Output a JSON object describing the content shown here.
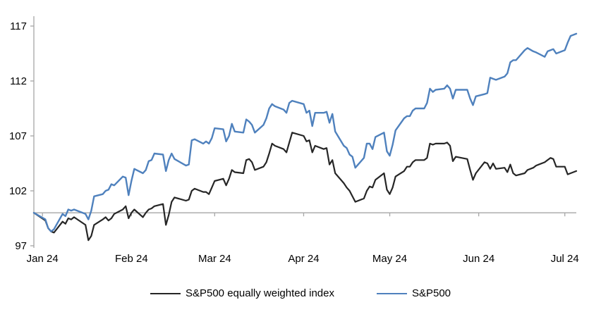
{
  "chart_data": {
    "type": "line",
    "title": "",
    "xlabel": "",
    "ylabel": "",
    "grid": "off",
    "legend_position": "bottom-center",
    "y_axis": {
      "min": 97,
      "max": 117,
      "ticks": [
        97,
        102,
        107,
        112,
        117
      ]
    },
    "x_axis": {
      "tick_labels": [
        "Jan 24",
        "Feb 24",
        "Mar 24",
        "Apr 24",
        "May 24",
        "Jun 24",
        "Jul 24"
      ],
      "tick_positions_days": [
        3,
        34,
        63,
        94,
        124,
        155,
        185
      ],
      "x_unit": "calendar days since index base (=100), daily closes Jan-early Jul 2024"
    },
    "baseline_value": 100,
    "series": [
      {
        "name": "S&P500 equally weighted index",
        "color": "#262626",
        "points": [
          [
            0,
            100
          ],
          [
            4,
            99.3
          ],
          [
            5,
            98.6
          ],
          [
            6,
            98.3
          ],
          [
            7,
            98.2
          ],
          [
            10,
            99.2
          ],
          [
            11,
            99.0
          ],
          [
            12,
            99.5
          ],
          [
            13,
            99.4
          ],
          [
            14,
            99.6
          ],
          [
            18,
            98.9
          ],
          [
            19,
            97.5
          ],
          [
            20,
            97.9
          ],
          [
            21,
            98.9
          ],
          [
            24,
            99.4
          ],
          [
            25,
            99.6
          ],
          [
            26,
            99.3
          ],
          [
            27,
            99.5
          ],
          [
            28,
            99.9
          ],
          [
            31,
            100.3
          ],
          [
            32,
            100.6
          ],
          [
            33,
            99.5
          ],
          [
            34,
            100.0
          ],
          [
            35,
            100.3
          ],
          [
            38,
            99.6
          ],
          [
            39,
            100.0
          ],
          [
            40,
            100.3
          ],
          [
            41,
            100.4
          ],
          [
            42,
            100.6
          ],
          [
            45,
            100.8
          ],
          [
            46,
            98.9
          ],
          [
            47,
            99.8
          ],
          [
            48,
            101.0
          ],
          [
            49,
            101.4
          ],
          [
            53,
            101.1
          ],
          [
            54,
            101.2
          ],
          [
            55,
            102.0
          ],
          [
            56,
            102.2
          ],
          [
            59,
            101.9
          ],
          [
            60,
            101.9
          ],
          [
            61,
            101.7
          ],
          [
            62,
            102.3
          ],
          [
            63,
            102.9
          ],
          [
            66,
            103.1
          ],
          [
            67,
            102.5
          ],
          [
            68,
            103.1
          ],
          [
            69,
            103.9
          ],
          [
            70,
            103.7
          ],
          [
            73,
            103.6
          ],
          [
            74,
            104.8
          ],
          [
            75,
            104.9
          ],
          [
            76,
            104.6
          ],
          [
            77,
            103.9
          ],
          [
            80,
            104.2
          ],
          [
            81,
            104.6
          ],
          [
            82,
            105.4
          ],
          [
            83,
            106.3
          ],
          [
            84,
            106.1
          ],
          [
            87,
            105.8
          ],
          [
            88,
            105.5
          ],
          [
            89,
            106.4
          ],
          [
            90,
            107.3
          ],
          [
            94,
            107.0
          ],
          [
            95,
            106.5
          ],
          [
            96,
            106.6
          ],
          [
            97,
            105.5
          ],
          [
            98,
            106.1
          ],
          [
            101,
            105.8
          ],
          [
            102,
            105.9
          ],
          [
            103,
            104.4
          ],
          [
            104,
            104.8
          ],
          [
            105,
            103.6
          ],
          [
            108,
            102.7
          ],
          [
            109,
            102.3
          ],
          [
            110,
            102.0
          ],
          [
            111,
            101.5
          ],
          [
            112,
            101.0
          ],
          [
            115,
            101.3
          ],
          [
            116,
            102.0
          ],
          [
            117,
            102.4
          ],
          [
            118,
            102.3
          ],
          [
            119,
            103.0
          ],
          [
            122,
            103.6
          ],
          [
            123,
            102.1
          ],
          [
            124,
            101.7
          ],
          [
            125,
            102.3
          ],
          [
            126,
            103.3
          ],
          [
            129,
            103.8
          ],
          [
            130,
            104.2
          ],
          [
            131,
            104.2
          ],
          [
            132,
            104.6
          ],
          [
            133,
            104.8
          ],
          [
            136,
            104.8
          ],
          [
            137,
            105.0
          ],
          [
            138,
            106.3
          ],
          [
            139,
            106.2
          ],
          [
            140,
            106.3
          ],
          [
            143,
            106.3
          ],
          [
            144,
            106.4
          ],
          [
            145,
            106.1
          ],
          [
            146,
            104.7
          ],
          [
            147,
            105.1
          ],
          [
            151,
            104.9
          ],
          [
            152,
            103.9
          ],
          [
            153,
            103.0
          ],
          [
            154,
            103.6
          ],
          [
            157,
            104.6
          ],
          [
            158,
            104.5
          ],
          [
            159,
            104.0
          ],
          [
            160,
            104.5
          ],
          [
            161,
            104.0
          ],
          [
            164,
            104.1
          ],
          [
            165,
            103.7
          ],
          [
            166,
            104.4
          ],
          [
            167,
            103.6
          ],
          [
            168,
            103.4
          ],
          [
            171,
            103.6
          ],
          [
            172,
            103.9
          ],
          [
            174,
            104.1
          ],
          [
            175,
            104.3
          ],
          [
            178,
            104.6
          ],
          [
            179,
            104.8
          ],
          [
            180,
            105.0
          ],
          [
            181,
            104.9
          ],
          [
            182,
            104.2
          ],
          [
            185,
            104.2
          ],
          [
            186,
            103.5
          ],
          [
            187,
            103.6
          ],
          [
            189,
            103.8
          ]
        ]
      },
      {
        "name": "S&P500",
        "color": "#4f81bd",
        "points": [
          [
            0,
            100
          ],
          [
            4,
            99.4
          ],
          [
            5,
            98.6
          ],
          [
            6,
            98.3
          ],
          [
            7,
            98.5
          ],
          [
            10,
            99.9
          ],
          [
            11,
            99.7
          ],
          [
            12,
            100.3
          ],
          [
            13,
            100.2
          ],
          [
            14,
            100.3
          ],
          [
            18,
            99.9
          ],
          [
            19,
            99.4
          ],
          [
            20,
            100.2
          ],
          [
            21,
            101.5
          ],
          [
            24,
            101.7
          ],
          [
            25,
            102.0
          ],
          [
            26,
            102.1
          ],
          [
            27,
            102.6
          ],
          [
            28,
            102.5
          ],
          [
            31,
            103.3
          ],
          [
            32,
            103.2
          ],
          [
            33,
            101.6
          ],
          [
            34,
            102.9
          ],
          [
            35,
            104.0
          ],
          [
            38,
            103.6
          ],
          [
            39,
            103.9
          ],
          [
            40,
            104.7
          ],
          [
            41,
            104.8
          ],
          [
            42,
            105.4
          ],
          [
            45,
            105.3
          ],
          [
            46,
            103.8
          ],
          [
            47,
            104.8
          ],
          [
            48,
            105.4
          ],
          [
            49,
            104.9
          ],
          [
            53,
            104.3
          ],
          [
            54,
            104.4
          ],
          [
            55,
            106.6
          ],
          [
            56,
            106.7
          ],
          [
            59,
            106.3
          ],
          [
            60,
            106.5
          ],
          [
            61,
            106.3
          ],
          [
            62,
            106.8
          ],
          [
            63,
            107.7
          ],
          [
            66,
            107.6
          ],
          [
            67,
            106.5
          ],
          [
            68,
            107.0
          ],
          [
            69,
            108.1
          ],
          [
            70,
            107.4
          ],
          [
            73,
            107.3
          ],
          [
            74,
            108.5
          ],
          [
            75,
            108.3
          ],
          [
            76,
            108.0
          ],
          [
            77,
            107.3
          ],
          [
            80,
            108.0
          ],
          [
            81,
            108.6
          ],
          [
            82,
            109.5
          ],
          [
            83,
            109.9
          ],
          [
            84,
            109.7
          ],
          [
            87,
            109.4
          ],
          [
            88,
            109.1
          ],
          [
            89,
            110.0
          ],
          [
            90,
            110.2
          ],
          [
            94,
            109.9
          ],
          [
            95,
            109.1
          ],
          [
            96,
            109.3
          ],
          [
            97,
            107.9
          ],
          [
            98,
            109.1
          ],
          [
            101,
            109.1
          ],
          [
            102,
            109.2
          ],
          [
            103,
            108.2
          ],
          [
            104,
            109.0
          ],
          [
            105,
            107.4
          ],
          [
            108,
            106.1
          ],
          [
            109,
            105.9
          ],
          [
            110,
            105.3
          ],
          [
            111,
            105.1
          ],
          [
            112,
            104.1
          ],
          [
            115,
            105.0
          ],
          [
            116,
            106.3
          ],
          [
            117,
            106.3
          ],
          [
            118,
            105.8
          ],
          [
            119,
            106.9
          ],
          [
            122,
            107.3
          ],
          [
            123,
            105.6
          ],
          [
            124,
            105.2
          ],
          [
            125,
            106.2
          ],
          [
            126,
            107.5
          ],
          [
            129,
            108.6
          ],
          [
            130,
            108.8
          ],
          [
            131,
            108.8
          ],
          [
            132,
            109.3
          ],
          [
            133,
            109.5
          ],
          [
            136,
            109.5
          ],
          [
            137,
            110.0
          ],
          [
            138,
            111.3
          ],
          [
            139,
            111.0
          ],
          [
            140,
            111.2
          ],
          [
            143,
            111.3
          ],
          [
            144,
            111.6
          ],
          [
            145,
            111.3
          ],
          [
            146,
            110.4
          ],
          [
            147,
            111.2
          ],
          [
            151,
            111.2
          ],
          [
            152,
            110.4
          ],
          [
            153,
            109.8
          ],
          [
            154,
            110.6
          ],
          [
            157,
            110.8
          ],
          [
            158,
            110.9
          ],
          [
            159,
            112.3
          ],
          [
            160,
            112.2
          ],
          [
            161,
            112.1
          ],
          [
            164,
            112.4
          ],
          [
            165,
            112.7
          ],
          [
            166,
            113.7
          ],
          [
            167,
            113.9
          ],
          [
            168,
            113.9
          ],
          [
            171,
            114.8
          ],
          [
            172,
            115.0
          ],
          [
            174,
            114.7
          ],
          [
            175,
            114.6
          ],
          [
            178,
            114.2
          ],
          [
            179,
            114.7
          ],
          [
            180,
            114.8
          ],
          [
            181,
            114.9
          ],
          [
            182,
            114.5
          ],
          [
            185,
            114.8
          ],
          [
            186,
            115.5
          ],
          [
            187,
            116.1
          ],
          [
            189,
            116.3
          ]
        ]
      }
    ]
  },
  "legend": {
    "items": [
      {
        "label": "S&P500 equally weighted index",
        "color": "#262626"
      },
      {
        "label": "S&P500",
        "color": "#4f81bd"
      }
    ]
  },
  "colors": {
    "axis": "#a6a6a6",
    "text": "#000000",
    "background": "#ffffff"
  }
}
